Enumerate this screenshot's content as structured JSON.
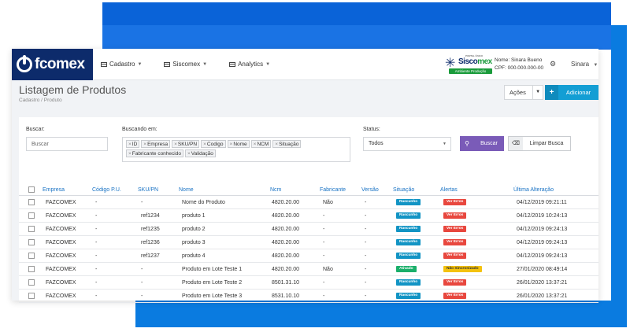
{
  "colors": {
    "brand": "#0d2b6b",
    "accent": "#139ed4",
    "buscar": "#7a5bb8",
    "rascunho": "#1294c4",
    "ativado": "#1aaf6a",
    "ver_erros": "#e8473e",
    "nao_sincronizado": "#f4c20d"
  },
  "nav": {
    "logo_text": "fcomex",
    "menu": [
      {
        "label": "Cadastro",
        "icon": "grid-icon"
      },
      {
        "label": "Siscomex",
        "icon": "grid-icon"
      },
      {
        "label": "Analytics",
        "icon": "grid-icon"
      }
    ],
    "siscomex": {
      "top": "PORTAL ÚNICO",
      "name_a": "Sisco",
      "name_b": "mex",
      "env": "Ambiente Produção"
    },
    "user": {
      "name": "Nome: Sinara Bueno",
      "cpf": "CPF: 000.000.000-00"
    },
    "user_menu": "Sinara"
  },
  "header": {
    "title": "Listagem de Produtos",
    "breadcrumb": "Cadastro  /  Produto",
    "acoes_label": "Ações",
    "add_label": "Adicionar"
  },
  "filters": {
    "buscar_label": "Buscar:",
    "buscar_placeholder": "Buscar",
    "buscando_label": "Buscando em:",
    "tags": [
      "ID",
      "Empresa",
      "SKU/PN",
      "Codigo",
      "Nome",
      "NCM",
      "Situação",
      "Fabricante conhecido",
      "Validação"
    ],
    "status_label": "Status:",
    "status_value": "Todos",
    "buscar_button": "Buscar",
    "limpar_button": "Limpar Busca"
  },
  "table": {
    "columns": [
      "Empresa",
      "Código P.U.",
      "SKU/PN",
      "Nome",
      "Ncm",
      "Fabricante",
      "Versão",
      "Situação",
      "Alertas",
      "Última Alteração"
    ],
    "rows": [
      {
        "empresa": "FAZCOMEX",
        "codigo": "-",
        "sku": "-",
        "nome": "Nome do Produto",
        "ncm": "4820.20.00",
        "fabricante": "Não",
        "versao": "-",
        "situacao": "Rascunho",
        "alerta": "Ver Erros",
        "data": "04/12/2019 09:21:11"
      },
      {
        "empresa": "FAZCOMEX",
        "codigo": "-",
        "sku": "ref1234",
        "nome": "produto 1",
        "ncm": "4820.20.00",
        "fabricante": "-",
        "versao": "-",
        "situacao": "Rascunho",
        "alerta": "Ver Erros",
        "data": "04/12/2019 10:24:13"
      },
      {
        "empresa": "FAZCOMEX",
        "codigo": "-",
        "sku": "ref1235",
        "nome": "produto 2",
        "ncm": "4820.20.00",
        "fabricante": "-",
        "versao": "-",
        "situacao": "Rascunho",
        "alerta": "Ver Erros",
        "data": "04/12/2019 09:24:13"
      },
      {
        "empresa": "FAZCOMEX",
        "codigo": "-",
        "sku": "ref1236",
        "nome": "produto 3",
        "ncm": "4820.20.00",
        "fabricante": "-",
        "versao": "-",
        "situacao": "Rascunho",
        "alerta": "Ver Erros",
        "data": "04/12/2019 09:24:13"
      },
      {
        "empresa": "FAZCOMEX",
        "codigo": "-",
        "sku": "ref1237",
        "nome": "produto 4",
        "ncm": "4820.20.00",
        "fabricante": "-",
        "versao": "-",
        "situacao": "Rascunho",
        "alerta": "Ver Erros",
        "data": "04/12/2019 09:24:13"
      },
      {
        "empresa": "FAZCOMEX",
        "codigo": "-",
        "sku": "-",
        "nome": "Produto em Lote Teste 1",
        "ncm": "4820.20.00",
        "fabricante": "Não",
        "versao": "-",
        "situacao": "Ativado",
        "alerta": "Não Sincronizado",
        "data": "27/01/2020 08:49:14"
      },
      {
        "empresa": "FAZCOMEX",
        "codigo": "-",
        "sku": "-",
        "nome": "Produto em Lote Teste 2",
        "ncm": "8501.31.10",
        "fabricante": "-",
        "versao": "-",
        "situacao": "Rascunho",
        "alerta": "Ver Erros",
        "data": "26/01/2020 13:37:21"
      },
      {
        "empresa": "FAZCOMEX",
        "codigo": "-",
        "sku": "-",
        "nome": "Produto em Lote Teste 3",
        "ncm": "8531.10.10",
        "fabricante": "-",
        "versao": "-",
        "situacao": "Rascunho",
        "alerta": "Ver Erros",
        "data": "26/01/2020 13:37:21"
      }
    ]
  }
}
